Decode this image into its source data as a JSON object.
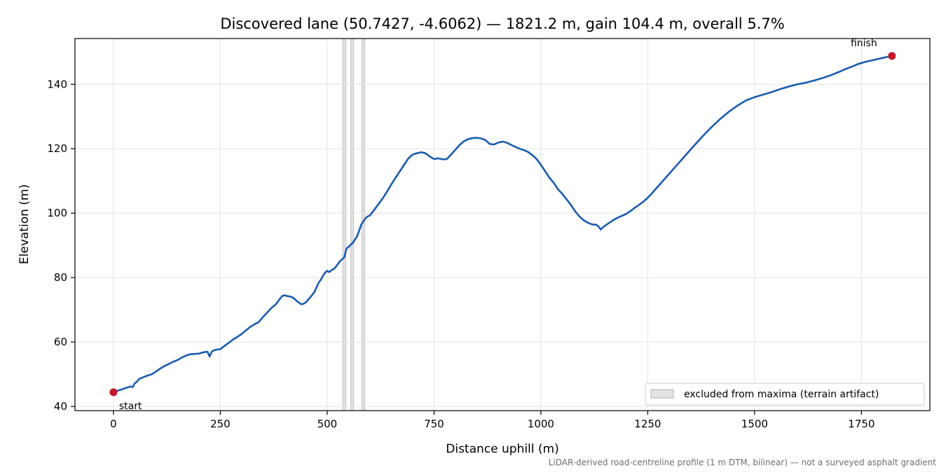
{
  "chart_data": {
    "type": "line",
    "title": "Discovered lane (50.7427, -4.6062) — 1821.2 m, gain 104.4 m, overall 5.7%",
    "xlabel": "Distance uphill (m)",
    "ylabel": "Elevation (m)",
    "xlim": [
      -90,
      1910
    ],
    "ylim": [
      38.7,
      154.2
    ],
    "xticks": [
      0,
      250,
      500,
      750,
      1000,
      1250,
      1500,
      1750
    ],
    "yticks": [
      40,
      60,
      80,
      100,
      120,
      140
    ],
    "grid": true,
    "legend_position": "lower-right",
    "legend_entries": [
      "excluded from maxima (terrain artifact)"
    ],
    "excluded_bands": [
      [
        536,
        544
      ],
      [
        555,
        562
      ],
      [
        581,
        588
      ]
    ],
    "series": [
      {
        "color": "#1a5bb0",
        "x": [
          0,
          10,
          20,
          30,
          40,
          45,
          50,
          55,
          60,
          70,
          80,
          90,
          100,
          110,
          120,
          130,
          140,
          150,
          160,
          170,
          180,
          190,
          200,
          210,
          220,
          225,
          230,
          235,
          240,
          250,
          260,
          270,
          280,
          290,
          300,
          310,
          320,
          330,
          340,
          350,
          360,
          370,
          380,
          390,
          395,
          400,
          405,
          410,
          420,
          430,
          440,
          445,
          450,
          460,
          470,
          480,
          485,
          490,
          495,
          500,
          505,
          510,
          515,
          520,
          530,
          540,
          545,
          550,
          560,
          570,
          580,
          590,
          595,
          600,
          610,
          620,
          630,
          640,
          650,
          660,
          670,
          680,
          690,
          700,
          710,
          720,
          730,
          740,
          750,
          760,
          770,
          780,
          790,
          800,
          810,
          820,
          830,
          840,
          850,
          860,
          870,
          880,
          890,
          900,
          910,
          920,
          930,
          940,
          950,
          960,
          970,
          980,
          990,
          1000,
          1010,
          1020,
          1030,
          1040,
          1050,
          1060,
          1070,
          1080,
          1090,
          1100,
          1110,
          1120,
          1130,
          1135,
          1140,
          1145,
          1150,
          1160,
          1170,
          1180,
          1190,
          1200,
          1210,
          1220,
          1230,
          1240,
          1250,
          1260,
          1270,
          1280,
          1290,
          1300,
          1320,
          1340,
          1360,
          1380,
          1400,
          1420,
          1440,
          1460,
          1480,
          1500,
          1520,
          1540,
          1560,
          1580,
          1600,
          1620,
          1640,
          1660,
          1680,
          1700,
          1710,
          1720,
          1730,
          1740,
          1760,
          1780,
          1800,
          1821.2
        ],
        "y": [
          44.4,
          44.9,
          45.3,
          45.8,
          46.2,
          46.0,
          47.2,
          47.7,
          48.5,
          49.1,
          49.6,
          50.0,
          50.9,
          51.8,
          52.6,
          53.2,
          53.9,
          54.4,
          55.2,
          55.8,
          56.2,
          56.3,
          56.4,
          56.8,
          57.0,
          55.5,
          57.0,
          57.4,
          57.6,
          57.8,
          58.8,
          59.8,
          60.8,
          61.6,
          62.5,
          63.6,
          64.7,
          65.5,
          66.2,
          67.8,
          69.2,
          70.6,
          71.7,
          73.5,
          74.3,
          74.5,
          74.3,
          74.2,
          73.8,
          72.6,
          71.7,
          71.9,
          72.3,
          73.8,
          75.5,
          78.4,
          79.3,
          80.5,
          81.5,
          82.1,
          81.7,
          82.3,
          82.6,
          83.3,
          85.1,
          86.3,
          89.0,
          89.5,
          90.8,
          92.8,
          96.5,
          98.5,
          99.0,
          99.3,
          101.0,
          102.8,
          104.6,
          106.7,
          108.9,
          111.0,
          113.0,
          115.0,
          117.0,
          118.2,
          118.6,
          118.9,
          118.6,
          117.6,
          116.8,
          117.0,
          116.7,
          116.8,
          118.2,
          119.7,
          121.2,
          122.3,
          123.0,
          123.3,
          123.4,
          123.2,
          122.7,
          121.5,
          121.3,
          121.9,
          122.2,
          121.9,
          121.2,
          120.6,
          120.0,
          119.6,
          119.0,
          118.0,
          116.8,
          115.0,
          113.0,
          111.0,
          109.4,
          107.4,
          106.0,
          104.3,
          102.6,
          100.6,
          99.0,
          97.8,
          97.0,
          96.5,
          96.4,
          95.8,
          94.9,
          95.6,
          96.1,
          97.0,
          97.9,
          98.6,
          99.2,
          99.8,
          100.7,
          101.7,
          102.6,
          103.6,
          104.8,
          106.2,
          107.7,
          109.2,
          110.7,
          112.2,
          115.2,
          118.2,
          121.2,
          124.1,
          126.8,
          129.3,
          131.5,
          133.4,
          135.0,
          136.0,
          136.8,
          137.6,
          138.5,
          139.3,
          140.0,
          140.5,
          141.2,
          142.0,
          142.9,
          144.0,
          144.6,
          145.1,
          145.6,
          146.2,
          147.0,
          147.6,
          148.2,
          148.8
        ]
      }
    ],
    "annotations": [
      {
        "label": "start",
        "x": 0,
        "y": 44.4,
        "marker_color": "#c0192a"
      },
      {
        "label": "finish",
        "x": 1821.2,
        "y": 148.8,
        "marker_color": "#c0192a"
      }
    ],
    "footnote": "LiDAR-derived road-centreline profile (1 m DTM, bilinear) — not a surveyed asphalt gradient"
  }
}
